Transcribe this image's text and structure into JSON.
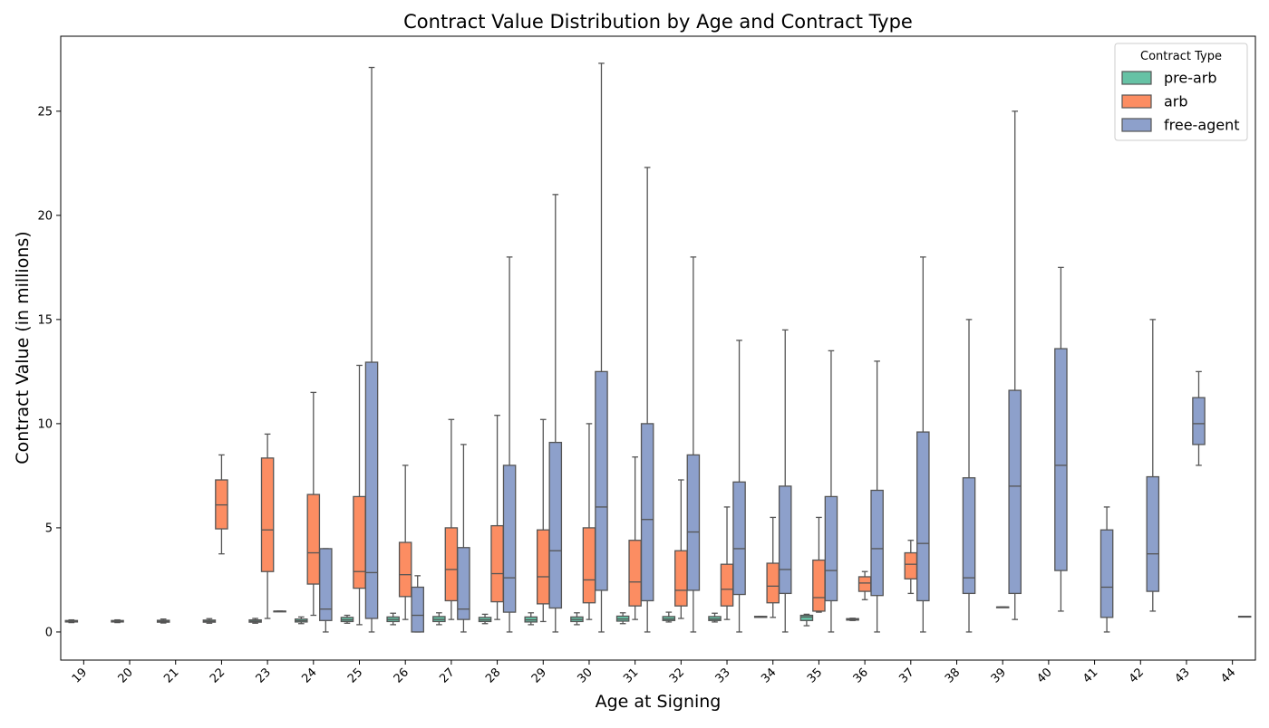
{
  "chart_data": {
    "type": "boxplot",
    "title": "Contract Value Distribution by Age and Contract Type",
    "xlabel": "Age at Signing",
    "ylabel": "Contract Value (in millions)",
    "ylim": [
      -1.35,
      28.6
    ],
    "yticks": [
      0,
      5,
      10,
      15,
      20,
      25
    ],
    "categories": [
      "19",
      "20",
      "21",
      "22",
      "23",
      "24",
      "25",
      "26",
      "27",
      "28",
      "29",
      "30",
      "31",
      "32",
      "33",
      "34",
      "35",
      "36",
      "37",
      "38",
      "39",
      "40",
      "41",
      "42",
      "43",
      "44"
    ],
    "grid": false,
    "legend": {
      "title": "Contract Type",
      "position": "top-right"
    },
    "series": [
      {
        "name": "pre-arb",
        "color": "#66c2a5",
        "boxes": [
          {
            "cat": "19",
            "min": 0.45,
            "q1": 0.48,
            "median": 0.51,
            "q3": 0.55,
            "max": 0.58
          },
          {
            "cat": "20",
            "min": 0.45,
            "q1": 0.48,
            "median": 0.51,
            "q3": 0.55,
            "max": 0.58
          },
          {
            "cat": "21",
            "min": 0.43,
            "q1": 0.47,
            "median": 0.51,
            "q3": 0.56,
            "max": 0.62
          },
          {
            "cat": "22",
            "min": 0.42,
            "q1": 0.47,
            "median": 0.51,
            "q3": 0.57,
            "max": 0.64
          },
          {
            "cat": "23",
            "min": 0.42,
            "q1": 0.47,
            "median": 0.52,
            "q3": 0.58,
            "max": 0.65
          },
          {
            "cat": "24",
            "min": 0.4,
            "q1": 0.48,
            "median": 0.54,
            "q3": 0.62,
            "max": 0.72
          },
          {
            "cat": "25",
            "min": 0.42,
            "q1": 0.5,
            "median": 0.58,
            "q3": 0.7,
            "max": 0.8
          },
          {
            "cat": "26",
            "min": 0.35,
            "q1": 0.5,
            "median": 0.6,
            "q3": 0.72,
            "max": 0.9
          },
          {
            "cat": "27",
            "min": 0.35,
            "q1": 0.5,
            "median": 0.6,
            "q3": 0.74,
            "max": 0.92
          },
          {
            "cat": "28",
            "min": 0.4,
            "q1": 0.5,
            "median": 0.58,
            "q3": 0.7,
            "max": 0.85
          },
          {
            "cat": "29",
            "min": 0.35,
            "q1": 0.48,
            "median": 0.58,
            "q3": 0.72,
            "max": 0.92
          },
          {
            "cat": "30",
            "min": 0.35,
            "q1": 0.5,
            "median": 0.6,
            "q3": 0.72,
            "max": 0.92
          },
          {
            "cat": "31",
            "min": 0.4,
            "q1": 0.52,
            "median": 0.62,
            "q3": 0.76,
            "max": 0.92
          },
          {
            "cat": "32",
            "min": 0.48,
            "q1": 0.55,
            "median": 0.62,
            "q3": 0.74,
            "max": 0.95
          },
          {
            "cat": "33",
            "min": 0.48,
            "q1": 0.55,
            "median": 0.62,
            "q3": 0.74,
            "max": 0.9
          },
          {
            "cat": "34",
            "min": 0.7,
            "q1": 0.7,
            "median": 0.72,
            "q3": 0.75,
            "max": 0.75
          },
          {
            "cat": "35",
            "min": 0.3,
            "q1": 0.55,
            "median": 0.72,
            "q3": 0.8,
            "max": 0.85
          },
          {
            "cat": "36",
            "min": 0.55,
            "q1": 0.57,
            "median": 0.6,
            "q3": 0.64,
            "max": 0.66
          }
        ]
      },
      {
        "name": "arb",
        "color": "#fc8d62",
        "boxes": [
          {
            "cat": "22",
            "min": 3.75,
            "q1": 4.95,
            "median": 6.1,
            "q3": 7.3,
            "max": 8.5
          },
          {
            "cat": "23",
            "min": 0.65,
            "q1": 2.9,
            "median": 4.9,
            "q3": 8.35,
            "max": 9.5
          },
          {
            "cat": "24",
            "min": 0.8,
            "q1": 2.3,
            "median": 3.8,
            "q3": 6.6,
            "max": 11.5
          },
          {
            "cat": "25",
            "min": 0.35,
            "q1": 2.1,
            "median": 2.9,
            "q3": 6.5,
            "max": 12.8
          },
          {
            "cat": "26",
            "min": 0.6,
            "q1": 1.7,
            "median": 2.75,
            "q3": 4.3,
            "max": 8.0
          },
          {
            "cat": "27",
            "min": 0.6,
            "q1": 1.5,
            "median": 3.0,
            "q3": 5.0,
            "max": 10.2
          },
          {
            "cat": "28",
            "min": 0.6,
            "q1": 1.45,
            "median": 2.8,
            "q3": 5.1,
            "max": 10.4
          },
          {
            "cat": "29",
            "min": 0.5,
            "q1": 1.35,
            "median": 2.65,
            "q3": 4.9,
            "max": 10.2
          },
          {
            "cat": "30",
            "min": 0.6,
            "q1": 1.4,
            "median": 2.5,
            "q3": 5.0,
            "max": 10.0
          },
          {
            "cat": "31",
            "min": 0.6,
            "q1": 1.25,
            "median": 2.4,
            "q3": 4.4,
            "max": 8.4
          },
          {
            "cat": "32",
            "min": 0.65,
            "q1": 1.25,
            "median": 2.0,
            "q3": 3.9,
            "max": 7.3
          },
          {
            "cat": "33",
            "min": 0.6,
            "q1": 1.25,
            "median": 2.05,
            "q3": 3.25,
            "max": 6.0
          },
          {
            "cat": "34",
            "min": 0.7,
            "q1": 1.4,
            "median": 2.2,
            "q3": 3.3,
            "max": 5.5
          },
          {
            "cat": "35",
            "min": 0.95,
            "q1": 1.0,
            "median": 1.65,
            "q3": 3.45,
            "max": 5.5
          },
          {
            "cat": "36",
            "min": 1.55,
            "q1": 1.95,
            "median": 2.35,
            "q3": 2.65,
            "max": 2.9
          },
          {
            "cat": "37",
            "min": 1.85,
            "q1": 2.55,
            "median": 3.25,
            "q3": 3.8,
            "max": 4.4
          },
          {
            "cat": "39",
            "min": 1.2,
            "q1": 1.2,
            "median": 1.2,
            "q3": 1.2,
            "max": 1.2
          }
        ]
      },
      {
        "name": "free-agent",
        "color": "#8da0cb",
        "boxes": [
          {
            "cat": "23",
            "min": 1.0,
            "q1": 1.0,
            "median": 1.0,
            "q3": 1.0,
            "max": 1.0
          },
          {
            "cat": "24",
            "min": 0.0,
            "q1": 0.55,
            "median": 1.1,
            "q3": 4.0,
            "max": 4.0
          },
          {
            "cat": "25",
            "min": 0.0,
            "q1": 0.65,
            "median": 2.85,
            "q3": 12.95,
            "max": 27.1
          },
          {
            "cat": "26",
            "min": 0.0,
            "q1": 0.0,
            "median": 0.8,
            "q3": 2.15,
            "max": 2.7
          },
          {
            "cat": "27",
            "min": 0.0,
            "q1": 0.6,
            "median": 1.1,
            "q3": 4.05,
            "max": 9.0
          },
          {
            "cat": "28",
            "min": 0.0,
            "q1": 0.95,
            "median": 2.6,
            "q3": 8.0,
            "max": 18.0
          },
          {
            "cat": "29",
            "min": 0.0,
            "q1": 1.15,
            "median": 3.9,
            "q3": 9.1,
            "max": 21.0
          },
          {
            "cat": "30",
            "min": 0.0,
            "q1": 2.0,
            "median": 6.0,
            "q3": 12.5,
            "max": 27.3
          },
          {
            "cat": "31",
            "min": 0.0,
            "q1": 1.5,
            "median": 5.4,
            "q3": 10.0,
            "max": 22.3
          },
          {
            "cat": "32",
            "min": 0.0,
            "q1": 2.0,
            "median": 4.8,
            "q3": 8.5,
            "max": 18.0
          },
          {
            "cat": "33",
            "min": 0.0,
            "q1": 1.8,
            "median": 4.0,
            "q3": 7.2,
            "max": 14.0
          },
          {
            "cat": "34",
            "min": 0.0,
            "q1": 1.85,
            "median": 3.0,
            "q3": 7.0,
            "max": 14.5
          },
          {
            "cat": "35",
            "min": 0.0,
            "q1": 1.5,
            "median": 2.95,
            "q3": 6.5,
            "max": 13.5
          },
          {
            "cat": "36",
            "min": 0.0,
            "q1": 1.75,
            "median": 4.0,
            "q3": 6.8,
            "max": 13.0
          },
          {
            "cat": "37",
            "min": 0.0,
            "q1": 1.5,
            "median": 4.25,
            "q3": 9.6,
            "max": 18.0
          },
          {
            "cat": "38",
            "min": 0.0,
            "q1": 1.85,
            "median": 2.6,
            "q3": 7.4,
            "max": 15.0
          },
          {
            "cat": "39",
            "min": 0.6,
            "q1": 1.85,
            "median": 7.0,
            "q3": 11.6,
            "max": 25.0
          },
          {
            "cat": "40",
            "min": 1.0,
            "q1": 2.95,
            "median": 8.0,
            "q3": 13.6,
            "max": 17.5
          },
          {
            "cat": "41",
            "min": 0.0,
            "q1": 0.7,
            "median": 2.15,
            "q3": 4.9,
            "max": 6.0
          },
          {
            "cat": "42",
            "min": 1.0,
            "q1": 1.95,
            "median": 3.75,
            "q3": 7.45,
            "max": 15.0
          },
          {
            "cat": "43",
            "min": 8.0,
            "q1": 9.0,
            "median": 10.0,
            "q3": 11.25,
            "max": 12.5
          },
          {
            "cat": "44",
            "min": 0.75,
            "q1": 0.75,
            "median": 0.75,
            "q3": 0.75,
            "max": 0.75
          }
        ]
      }
    ]
  }
}
